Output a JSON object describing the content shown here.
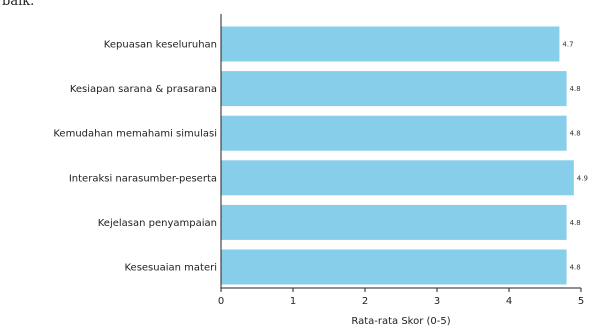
{
  "top_fragment": "baik.",
  "chart_data": {
    "type": "bar",
    "orientation": "horizontal",
    "categories": [
      "Kepuasan keseluruhan",
      "Kesiapan sarana & prasarana",
      "Kemudahan memahami simulasi",
      "Interaksi narasumber-peserta",
      "Kejelasan penyampaian",
      "Kesesuaian materi"
    ],
    "values": [
      4.7,
      4.8,
      4.8,
      4.9,
      4.8,
      4.8
    ],
    "data_labels": [
      "4.7",
      "4.8",
      "4.8",
      "4.9",
      "4.8",
      "4.8"
    ],
    "xlabel": "Rata-rata Skor (0-5)",
    "ylabel": "",
    "xlim": [
      0,
      5
    ],
    "xticks": [
      "0",
      "1",
      "2",
      "3",
      "4",
      "5"
    ],
    "grid": false,
    "bar_color": "#87ceeb"
  }
}
